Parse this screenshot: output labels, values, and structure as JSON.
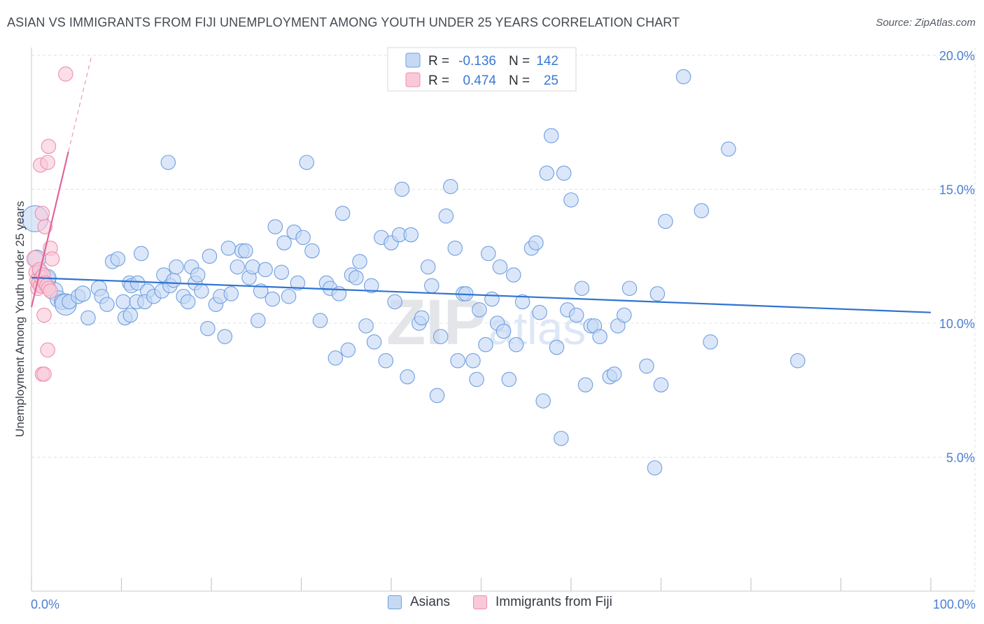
{
  "header": {
    "title": "ASIAN VS IMMIGRANTS FROM FIJI UNEMPLOYMENT AMONG YOUTH UNDER 25 YEARS CORRELATION CHART",
    "source": "Source: ZipAtlas.com"
  },
  "watermark": {
    "zip": "ZIP",
    "atlas": "atlas"
  },
  "colors": {
    "asians_fill": "#c5d9f5",
    "asians_stroke": "#6f9fe0",
    "asians_line": "#2f73d2",
    "fiji_fill": "#f9c9d8",
    "fiji_stroke": "#ee8fad",
    "fiji_line": "#e0669a",
    "axis_text": "#4a7fd1",
    "grid": "#dde1e6"
  },
  "chart_data": {
    "type": "scatter",
    "title": "ASIAN VS IMMIGRANTS FROM FIJI UNEMPLOYMENT AMONG YOUTH UNDER 25 YEARS CORRELATION CHART",
    "xlabel": "",
    "ylabel": "Unemployment Among Youth under 25 years",
    "xlim": [
      0,
      100
    ],
    "ylim": [
      0,
      21
    ],
    "x_tick_labels": [
      "0.0%",
      "100.0%"
    ],
    "y_ticks": [
      5,
      10,
      15,
      20
    ],
    "y_tick_labels": [
      "5.0%",
      "10.0%",
      "15.0%",
      "20.0%"
    ],
    "grid": true,
    "legend_position": "top-center",
    "legend_stats": [
      {
        "r_label": "R =",
        "r_value": "-0.136",
        "n_label": "N =",
        "n_value": "142"
      },
      {
        "r_label": "R =",
        "r_value": "0.474",
        "n_label": "N =",
        "n_value": "25"
      }
    ],
    "series": [
      {
        "name": "Asians",
        "trend": {
          "x": [
            0,
            100
          ],
          "y": [
            11.7,
            10.4
          ]
        },
        "points": [
          [
            0.4,
            13.9,
            2.2
          ],
          [
            0.6,
            12.4,
            1.5
          ],
          [
            1.0,
            11.9,
            1.3
          ],
          [
            1.5,
            11.6,
            1.8
          ],
          [
            1.8,
            11.7,
            1.4
          ],
          [
            2.5,
            11.2,
            1.5
          ],
          [
            3.0,
            10.9,
            1.4
          ],
          [
            3.4,
            10.8,
            1.3
          ],
          [
            3.8,
            10.7,
            1.8
          ],
          [
            4.2,
            10.8,
            1.2
          ],
          [
            5.2,
            11.0,
            1.2
          ],
          [
            5.7,
            11.1,
            1.3
          ],
          [
            6.3,
            10.2,
            1.2
          ],
          [
            7.5,
            11.3,
            1.3
          ],
          [
            7.8,
            11.0,
            1.2
          ],
          [
            8.4,
            10.7,
            1.2
          ],
          [
            9.0,
            12.3,
            1.2
          ],
          [
            9.6,
            12.4,
            1.2
          ],
          [
            10.9,
            11.5,
            1.2
          ],
          [
            11.1,
            11.4,
            1.2
          ],
          [
            11.8,
            11.5,
            1.2
          ],
          [
            10.2,
            10.8,
            1.2
          ],
          [
            10.4,
            10.2,
            1.2
          ],
          [
            11.0,
            10.3,
            1.2
          ],
          [
            11.7,
            10.8,
            1.2
          ],
          [
            12.2,
            12.6,
            1.2
          ],
          [
            12.9,
            11.2,
            1.2
          ],
          [
            12.6,
            10.8,
            1.2
          ],
          [
            13.6,
            11.0,
            1.2
          ],
          [
            14.7,
            11.8,
            1.2
          ],
          [
            14.5,
            11.2,
            1.2
          ],
          [
            15.4,
            11.4,
            1.2
          ],
          [
            15.2,
            16.0,
            1.2
          ],
          [
            15.8,
            11.6,
            1.2
          ],
          [
            16.1,
            12.1,
            1.2
          ],
          [
            16.9,
            11.0,
            1.2
          ],
          [
            17.4,
            10.8,
            1.2
          ],
          [
            17.8,
            12.1,
            1.2
          ],
          [
            18.2,
            11.5,
            1.2
          ],
          [
            18.5,
            11.8,
            1.2
          ],
          [
            18.9,
            11.2,
            1.2
          ],
          [
            19.6,
            9.8,
            1.2
          ],
          [
            19.8,
            12.5,
            1.2
          ],
          [
            20.5,
            10.7,
            1.2
          ],
          [
            21.0,
            11.0,
            1.2
          ],
          [
            21.5,
            9.5,
            1.2
          ],
          [
            21.9,
            12.8,
            1.2
          ],
          [
            22.2,
            11.1,
            1.2
          ],
          [
            22.9,
            12.1,
            1.2
          ],
          [
            23.4,
            12.7,
            1.2
          ],
          [
            23.8,
            12.7,
            1.2
          ],
          [
            24.2,
            11.7,
            1.2
          ],
          [
            24.6,
            12.1,
            1.2
          ],
          [
            25.2,
            10.1,
            1.2
          ],
          [
            25.5,
            11.2,
            1.2
          ],
          [
            26.0,
            12.0,
            1.2
          ],
          [
            26.8,
            10.9,
            1.2
          ],
          [
            27.1,
            13.6,
            1.2
          ],
          [
            27.8,
            11.9,
            1.2
          ],
          [
            28.1,
            13.0,
            1.2
          ],
          [
            28.6,
            11.0,
            1.2
          ],
          [
            29.2,
            13.4,
            1.2
          ],
          [
            29.6,
            11.5,
            1.2
          ],
          [
            30.2,
            13.2,
            1.2
          ],
          [
            30.6,
            16.0,
            1.2
          ],
          [
            31.2,
            12.7,
            1.2
          ],
          [
            32.1,
            10.1,
            1.2
          ],
          [
            32.8,
            11.5,
            1.2
          ],
          [
            33.2,
            11.3,
            1.2
          ],
          [
            33.8,
            8.7,
            1.2
          ],
          [
            34.2,
            11.1,
            1.2
          ],
          [
            34.6,
            14.1,
            1.2
          ],
          [
            35.2,
            9.0,
            1.2
          ],
          [
            35.6,
            11.8,
            1.2
          ],
          [
            36.1,
            11.7,
            1.2
          ],
          [
            36.5,
            12.3,
            1.2
          ],
          [
            37.2,
            9.9,
            1.2
          ],
          [
            37.8,
            11.4,
            1.2
          ],
          [
            38.1,
            9.3,
            1.2
          ],
          [
            38.9,
            13.2,
            1.2
          ],
          [
            39.4,
            8.6,
            1.2
          ],
          [
            40.0,
            13.0,
            1.2
          ],
          [
            40.4,
            10.8,
            1.2
          ],
          [
            40.9,
            13.3,
            1.2
          ],
          [
            41.2,
            15.0,
            1.2
          ],
          [
            41.8,
            8.0,
            1.2
          ],
          [
            42.2,
            13.3,
            1.2
          ],
          [
            43.1,
            10.0,
            1.2
          ],
          [
            43.4,
            10.2,
            1.2
          ],
          [
            44.1,
            12.1,
            1.2
          ],
          [
            44.5,
            11.4,
            1.2
          ],
          [
            45.1,
            7.3,
            1.2
          ],
          [
            45.5,
            9.5,
            1.2
          ],
          [
            46.1,
            14.0,
            1.2
          ],
          [
            46.6,
            15.1,
            1.2
          ],
          [
            47.1,
            12.8,
            1.2
          ],
          [
            47.4,
            8.6,
            1.2
          ],
          [
            48.0,
            11.1,
            1.2
          ],
          [
            48.3,
            11.1,
            1.2
          ],
          [
            49.1,
            8.6,
            1.2
          ],
          [
            49.5,
            7.9,
            1.2
          ],
          [
            49.8,
            10.5,
            1.2
          ],
          [
            50.5,
            9.2,
            1.2
          ],
          [
            50.8,
            12.6,
            1.2
          ],
          [
            51.2,
            10.9,
            1.2
          ],
          [
            51.8,
            10.0,
            1.2
          ],
          [
            52.1,
            12.1,
            1.2
          ],
          [
            52.5,
            9.7,
            1.2
          ],
          [
            53.1,
            7.9,
            1.2
          ],
          [
            53.6,
            11.8,
            1.2
          ],
          [
            53.9,
            9.2,
            1.2
          ],
          [
            54.6,
            10.8,
            1.2
          ],
          [
            55.6,
            12.8,
            1.2
          ],
          [
            56.1,
            13.0,
            1.2
          ],
          [
            56.5,
            10.4,
            1.2
          ],
          [
            56.9,
            7.1,
            1.2
          ],
          [
            57.3,
            15.6,
            1.2
          ],
          [
            57.8,
            17.0,
            1.2
          ],
          [
            58.4,
            9.1,
            1.2
          ],
          [
            58.9,
            5.7,
            1.2
          ],
          [
            59.2,
            15.6,
            1.2
          ],
          [
            59.6,
            10.5,
            1.2
          ],
          [
            60.0,
            14.6,
            1.2
          ],
          [
            60.6,
            10.3,
            1.2
          ],
          [
            61.2,
            11.3,
            1.2
          ],
          [
            61.6,
            7.7,
            1.2
          ],
          [
            62.2,
            9.9,
            1.2
          ],
          [
            62.6,
            9.9,
            1.2
          ],
          [
            63.2,
            9.5,
            1.2
          ],
          [
            64.3,
            8.0,
            1.2
          ],
          [
            64.8,
            8.1,
            1.2
          ],
          [
            65.2,
            9.9,
            1.2
          ],
          [
            65.9,
            10.3,
            1.2
          ],
          [
            66.5,
            11.3,
            1.2
          ],
          [
            68.4,
            8.4,
            1.2
          ],
          [
            69.3,
            4.6,
            1.2
          ],
          [
            69.6,
            11.1,
            1.2
          ],
          [
            70.0,
            7.7,
            1.2
          ],
          [
            70.5,
            13.8,
            1.2
          ],
          [
            72.5,
            19.2,
            1.2
          ],
          [
            74.5,
            14.2,
            1.2
          ],
          [
            75.5,
            9.3,
            1.2
          ],
          [
            77.5,
            16.5,
            1.2
          ],
          [
            85.2,
            8.6,
            1.2
          ]
        ]
      },
      {
        "name": "Immigrants from Fiji",
        "trend": {
          "x": [
            0,
            4.1
          ],
          "y": [
            10.6,
            16.4
          ]
        },
        "trend_extension": {
          "x": [
            4.1,
            6.7
          ],
          "y": [
            16.4,
            20.0
          ]
        },
        "points": [
          [
            0.4,
            12.4,
            1.4
          ],
          [
            0.5,
            11.9,
            1.2
          ],
          [
            0.6,
            11.6,
            1.2
          ],
          [
            0.7,
            11.3,
            1.2
          ],
          [
            0.8,
            11.5,
            1.2
          ],
          [
            0.9,
            12.0,
            1.2
          ],
          [
            1.0,
            11.4,
            1.2
          ],
          [
            1.1,
            11.7,
            1.2
          ],
          [
            1.3,
            11.8,
            1.2
          ],
          [
            1.5,
            11.5,
            1.2
          ],
          [
            1.7,
            11.4,
            1.2
          ],
          [
            1.9,
            11.3,
            1.2
          ],
          [
            2.1,
            11.2,
            1.2
          ],
          [
            1.0,
            15.9,
            1.2
          ],
          [
            1.2,
            14.1,
            1.2
          ],
          [
            1.5,
            13.6,
            1.2
          ],
          [
            1.8,
            16.0,
            1.2
          ],
          [
            1.9,
            16.6,
            1.2
          ],
          [
            2.1,
            12.8,
            1.2
          ],
          [
            2.3,
            12.4,
            1.2
          ],
          [
            1.4,
            10.3,
            1.2
          ],
          [
            1.8,
            9.0,
            1.2
          ],
          [
            1.2,
            8.1,
            1.2
          ],
          [
            1.4,
            8.1,
            1.2
          ],
          [
            3.8,
            19.3,
            1.2
          ]
        ]
      }
    ]
  },
  "legend_bottom": [
    {
      "label": "Asians"
    },
    {
      "label": "Immigrants from Fiji"
    }
  ]
}
